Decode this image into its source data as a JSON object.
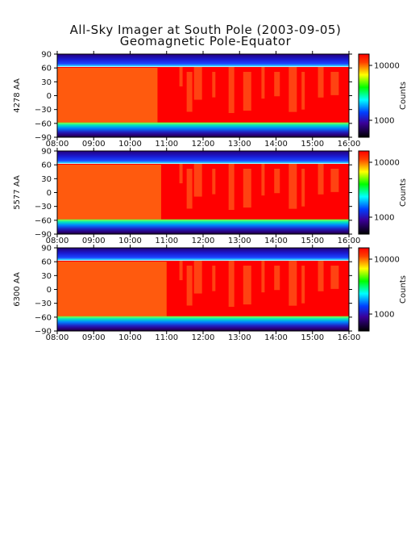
{
  "title": "All-Sky Imager at South Pole (2003-09-05)",
  "subtitle": "Geomagnetic Pole-Equator",
  "chart_data": {
    "type": "heatmap",
    "x": {
      "range": [
        "08:00",
        "16:00"
      ],
      "ticks": [
        "08:00",
        "09:00",
        "10:00",
        "11:00",
        "12:00",
        "13:00",
        "14:00",
        "15:00",
        "16:00"
      ]
    },
    "y": {
      "range": [
        -90,
        90
      ],
      "ticks": [
        90,
        60,
        30,
        0,
        -30,
        -60,
        -90
      ],
      "tick_labels": [
        "90",
        "60",
        "30",
        "0",
        "−30",
        "−60",
        "−90"
      ]
    },
    "colorbar": {
      "label": "Counts",
      "scale": "log",
      "tick_labels": [
        "10000",
        "1000"
      ],
      "colors": [
        "#ff0000",
        "#ffff00",
        "#00ff00",
        "#00ffff",
        "#0000ff",
        "#3a0098",
        "#000000"
      ]
    },
    "panels": [
      {
        "ylabel": "4278 AA",
        "saturation_drop_hour": 10.75
      },
      {
        "ylabel": "5577 AA",
        "saturation_drop_hour": 10.85
      },
      {
        "ylabel": "6300 AA",
        "saturation_drop_hour": 11.0
      }
    ]
  }
}
